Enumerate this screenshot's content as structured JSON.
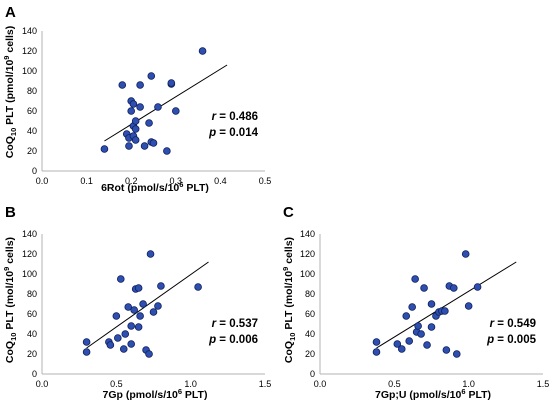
{
  "chart_data": [
    {
      "type": "scatter",
      "panel_label": "A",
      "xlabel": {
        "main": "6Rot (pmol/s/10",
        "sup": "6",
        "tail": " PLT)"
      },
      "ylabel": {
        "pre": "CoQ",
        "sub": "10",
        "mid": " PLT (pmol/10",
        "sup": "9",
        "tail": " cells)"
      },
      "xlim": [
        0,
        0.5
      ],
      "ylim": [
        0,
        140
      ],
      "xticks": [
        "0.0",
        "0.1",
        "0.2",
        "0.3",
        "0.4",
        "0.5"
      ],
      "yticks": [
        "0",
        "20",
        "40",
        "60",
        "80",
        "100",
        "120",
        "140"
      ],
      "r_label": "r",
      "r_value": " = 0.486",
      "p_label": "p",
      "p_value": " = 0.014",
      "trendline": {
        "x": [
          0.14,
          0.415
        ],
        "y": [
          30,
          106
        ]
      },
      "x": [
        0.14,
        0.18,
        0.19,
        0.195,
        0.195,
        0.2,
        0.2,
        0.205,
        0.205,
        0.205,
        0.21,
        0.21,
        0.21,
        0.22,
        0.22,
        0.23,
        0.24,
        0.245,
        0.245,
        0.25,
        0.26,
        0.28,
        0.29,
        0.29,
        0.3,
        0.36
      ],
      "y": [
        22,
        86,
        37,
        25,
        33,
        60,
        70,
        67,
        35,
        45,
        50,
        42,
        31,
        64,
        86,
        25,
        48,
        95,
        29,
        28,
        64,
        20,
        87,
        88,
        60,
        120
      ]
    },
    {
      "type": "scatter",
      "panel_label": "B",
      "xlabel": {
        "main": "7Gp (pmol/s/10",
        "sup": "6",
        "tail": " PLT)"
      },
      "ylabel": {
        "pre": "CoQ",
        "sub": "10",
        "mid": " PLT (mol/10",
        "sup": "9",
        "tail": " cells)"
      },
      "xlim": [
        0,
        1.5
      ],
      "ylim": [
        0,
        140
      ],
      "xticks": [
        "0.0",
        "0.5",
        "1.0",
        "1.5"
      ],
      "yticks": [
        "0",
        "20",
        "40",
        "60",
        "80",
        "100",
        "120",
        "140"
      ],
      "r_label": "r",
      "r_value": " = 0.537",
      "p_label": "p",
      "p_value": " = 0.006",
      "trendline": {
        "x": [
          0.3,
          1.12
        ],
        "y": [
          26,
          112
        ]
      },
      "x": [
        0.3,
        0.3,
        0.45,
        0.46,
        0.5,
        0.51,
        0.53,
        0.55,
        0.56,
        0.58,
        0.6,
        0.6,
        0.62,
        0.63,
        0.65,
        0.65,
        0.66,
        0.68,
        0.7,
        0.72,
        0.73,
        0.75,
        0.78,
        0.8,
        1.05
      ],
      "y": [
        32,
        22,
        32,
        29,
        58,
        36,
        95,
        25,
        40,
        67,
        30,
        48,
        64,
        85,
        86,
        47,
        58,
        70,
        24,
        20,
        120,
        62,
        68,
        88,
        87
      ]
    },
    {
      "type": "scatter",
      "panel_label": "C",
      "xlabel": {
        "main": "7Gp;U (pmol/s/10",
        "sup": "6",
        "tail": " PLT)"
      },
      "ylabel": {
        "pre": "CoQ",
        "sub": "10",
        "mid": " PLT (mol/10",
        "sup": "9",
        "tail": " cells)"
      },
      "xlim": [
        0,
        1.5
      ],
      "ylim": [
        0,
        140
      ],
      "xticks": [
        "0.0",
        "0.5",
        "1.0",
        "1.5"
      ],
      "yticks": [
        "0",
        "20",
        "40",
        "60",
        "80",
        "100",
        "120",
        "140"
      ],
      "r_label": "r",
      "r_value": " = 0.549",
      "p_label": "p",
      "p_value": " = 0.005",
      "trendline": {
        "x": [
          0.38,
          1.32
        ],
        "y": [
          26,
          112
        ]
      },
      "x": [
        0.38,
        0.38,
        0.52,
        0.55,
        0.58,
        0.6,
        0.62,
        0.64,
        0.65,
        0.66,
        0.68,
        0.7,
        0.72,
        0.75,
        0.75,
        0.78,
        0.8,
        0.82,
        0.84,
        0.85,
        0.87,
        0.9,
        0.92,
        0.98,
        1.0,
        1.06
      ],
      "y": [
        32,
        22,
        30,
        25,
        58,
        33,
        67,
        95,
        42,
        48,
        40,
        86,
        29,
        70,
        47,
        58,
        62,
        63,
        63,
        24,
        88,
        86,
        20,
        120,
        68,
        87
      ]
    }
  ],
  "style": {
    "point_fill": "#2f4fb0",
    "point_stroke": "#0d1f5c",
    "line_color": "#000000",
    "axis_color": "#b3b3b3"
  }
}
